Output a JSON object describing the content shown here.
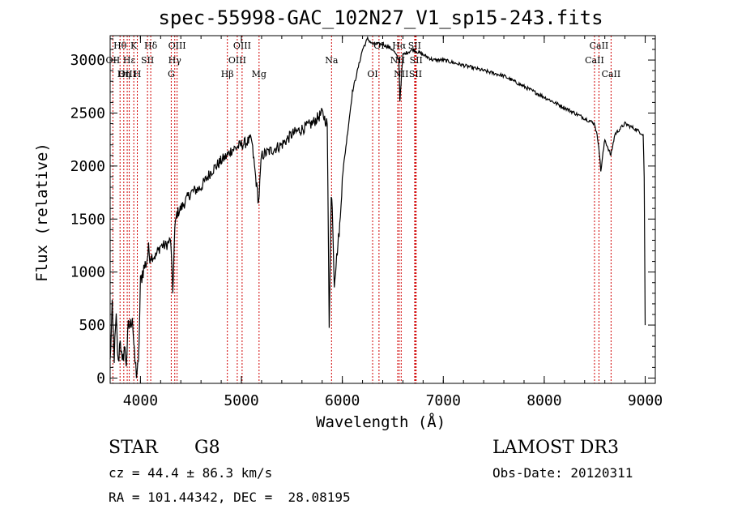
{
  "chart_data": {
    "type": "line",
    "title": "spec-55998-GAC_102N27_V1_sp15-243.fits",
    "xlabel": "Wavelength (Å)",
    "ylabel": "Flux (relative)",
    "xlim": [
      3700,
      9100
    ],
    "ylim": [
      -50,
      3230
    ],
    "xticks": [
      4000,
      5000,
      6000,
      7000,
      8000,
      9000
    ],
    "yticks": [
      0,
      500,
      1000,
      1500,
      2000,
      2500,
      3000
    ],
    "grid": false,
    "series": [
      {
        "name": "flux",
        "x": [
          3700,
          3720,
          3740,
          3760,
          3780,
          3800,
          3820,
          3840,
          3860,
          3880,
          3900,
          3920,
          3940,
          3960,
          3980,
          4000,
          4020,
          4040,
          4060,
          4080,
          4100,
          4150,
          4200,
          4250,
          4300,
          4320,
          4340,
          4360,
          4400,
          4500,
          4600,
          4700,
          4800,
          4861,
          4900,
          5000,
          5100,
          5170,
          5200,
          5300,
          5400,
          5500,
          5600,
          5700,
          5800,
          5850,
          5870,
          5880,
          5890,
          5900,
          5920,
          5950,
          5980,
          6000,
          6100,
          6200,
          6250,
          6300,
          6400,
          6500,
          6560,
          6570,
          6600,
          6700,
          6800,
          6900,
          7000,
          7200,
          7400,
          7600,
          7800,
          8000,
          8200,
          8400,
          8500,
          8540,
          8560,
          8600,
          8660,
          8700,
          8800,
          8900,
          8980,
          8990,
          9000
        ],
        "y": [
          150,
          650,
          200,
          550,
          120,
          400,
          100,
          300,
          150,
          480,
          500,
          600,
          200,
          50,
          100,
          900,
          1000,
          1050,
          1100,
          1200,
          1150,
          1150,
          1250,
          1250,
          1300,
          800,
          1400,
          1550,
          1600,
          1750,
          1800,
          1950,
          2050,
          2100,
          2150,
          2200,
          2250,
          1650,
          2100,
          2150,
          2200,
          2300,
          2350,
          2400,
          2500,
          2400,
          500,
          1200,
          1700,
          1650,
          900,
          1200,
          1500,
          1900,
          2700,
          3100,
          3200,
          3150,
          3150,
          3100,
          3000,
          2620,
          3050,
          3100,
          3050,
          3000,
          3000,
          2950,
          2900,
          2850,
          2750,
          2650,
          2550,
          2450,
          2400,
          2200,
          1950,
          2250,
          2100,
          2300,
          2400,
          2350,
          2300,
          1900,
          500
        ]
      }
    ],
    "lines": [
      {
        "label": "Hθ",
        "wave": 3798,
        "row": 0
      },
      {
        "label": "OII",
        "wave": 3727,
        "row": 1
      },
      {
        "label": "OIII",
        "wave": 3869,
        "row": 2
      },
      {
        "label": "K",
        "wave": 3934,
        "row": 0
      },
      {
        "label": "H",
        "wave": 3969,
        "row": 2
      },
      {
        "label": "Hε",
        "wave": 3889,
        "row": 1
      },
      {
        "label": "Hη",
        "wave": 3835,
        "row": 2
      },
      {
        "label": "SII",
        "wave": 4070,
        "row": 1
      },
      {
        "label": "Hδ",
        "wave": 4102,
        "row": 0
      },
      {
        "label": "OIII",
        "wave": 4363,
        "row": 0
      },
      {
        "label": "Hγ",
        "wave": 4340,
        "row": 1
      },
      {
        "label": "G",
        "wave": 4305,
        "row": 2
      },
      {
        "label": "Hβ",
        "wave": 4861,
        "row": 2
      },
      {
        "label": "OIII",
        "wave": 5007,
        "row": 0
      },
      {
        "label": "OIII",
        "wave": 4959,
        "row": 1
      },
      {
        "label": "Mg",
        "wave": 5175,
        "row": 2
      },
      {
        "label": "Na",
        "wave": 5893,
        "row": 1
      },
      {
        "label": "OI",
        "wave": 6300,
        "row": 2
      },
      {
        "label": "OI",
        "wave": 6363,
        "row": 0
      },
      {
        "label": "Hα",
        "wave": 6563,
        "row": 0
      },
      {
        "label": "NII",
        "wave": 6548,
        "row": 1
      },
      {
        "label": "NII",
        "wave": 6583,
        "row": 2
      },
      {
        "label": "SII",
        "wave": 6716,
        "row": 0
      },
      {
        "label": "SII",
        "wave": 6731,
        "row": 1
      },
      {
        "label": "SII",
        "wave": 6725,
        "row": 2
      },
      {
        "label": "CaII",
        "wave": 8498,
        "row": 1
      },
      {
        "label": "CaII",
        "wave": 8542,
        "row": 0
      },
      {
        "label": "CaII",
        "wave": 8662,
        "row": 2
      }
    ]
  },
  "info": {
    "class": "STAR",
    "subclass": "G8",
    "survey": "LAMOST DR3",
    "cz": "cz = 44.4 ± 86.3 km/s",
    "obs_date": "Obs-Date: 20120311",
    "coords": "RA = 101.44342, DEC =  28.08195"
  }
}
